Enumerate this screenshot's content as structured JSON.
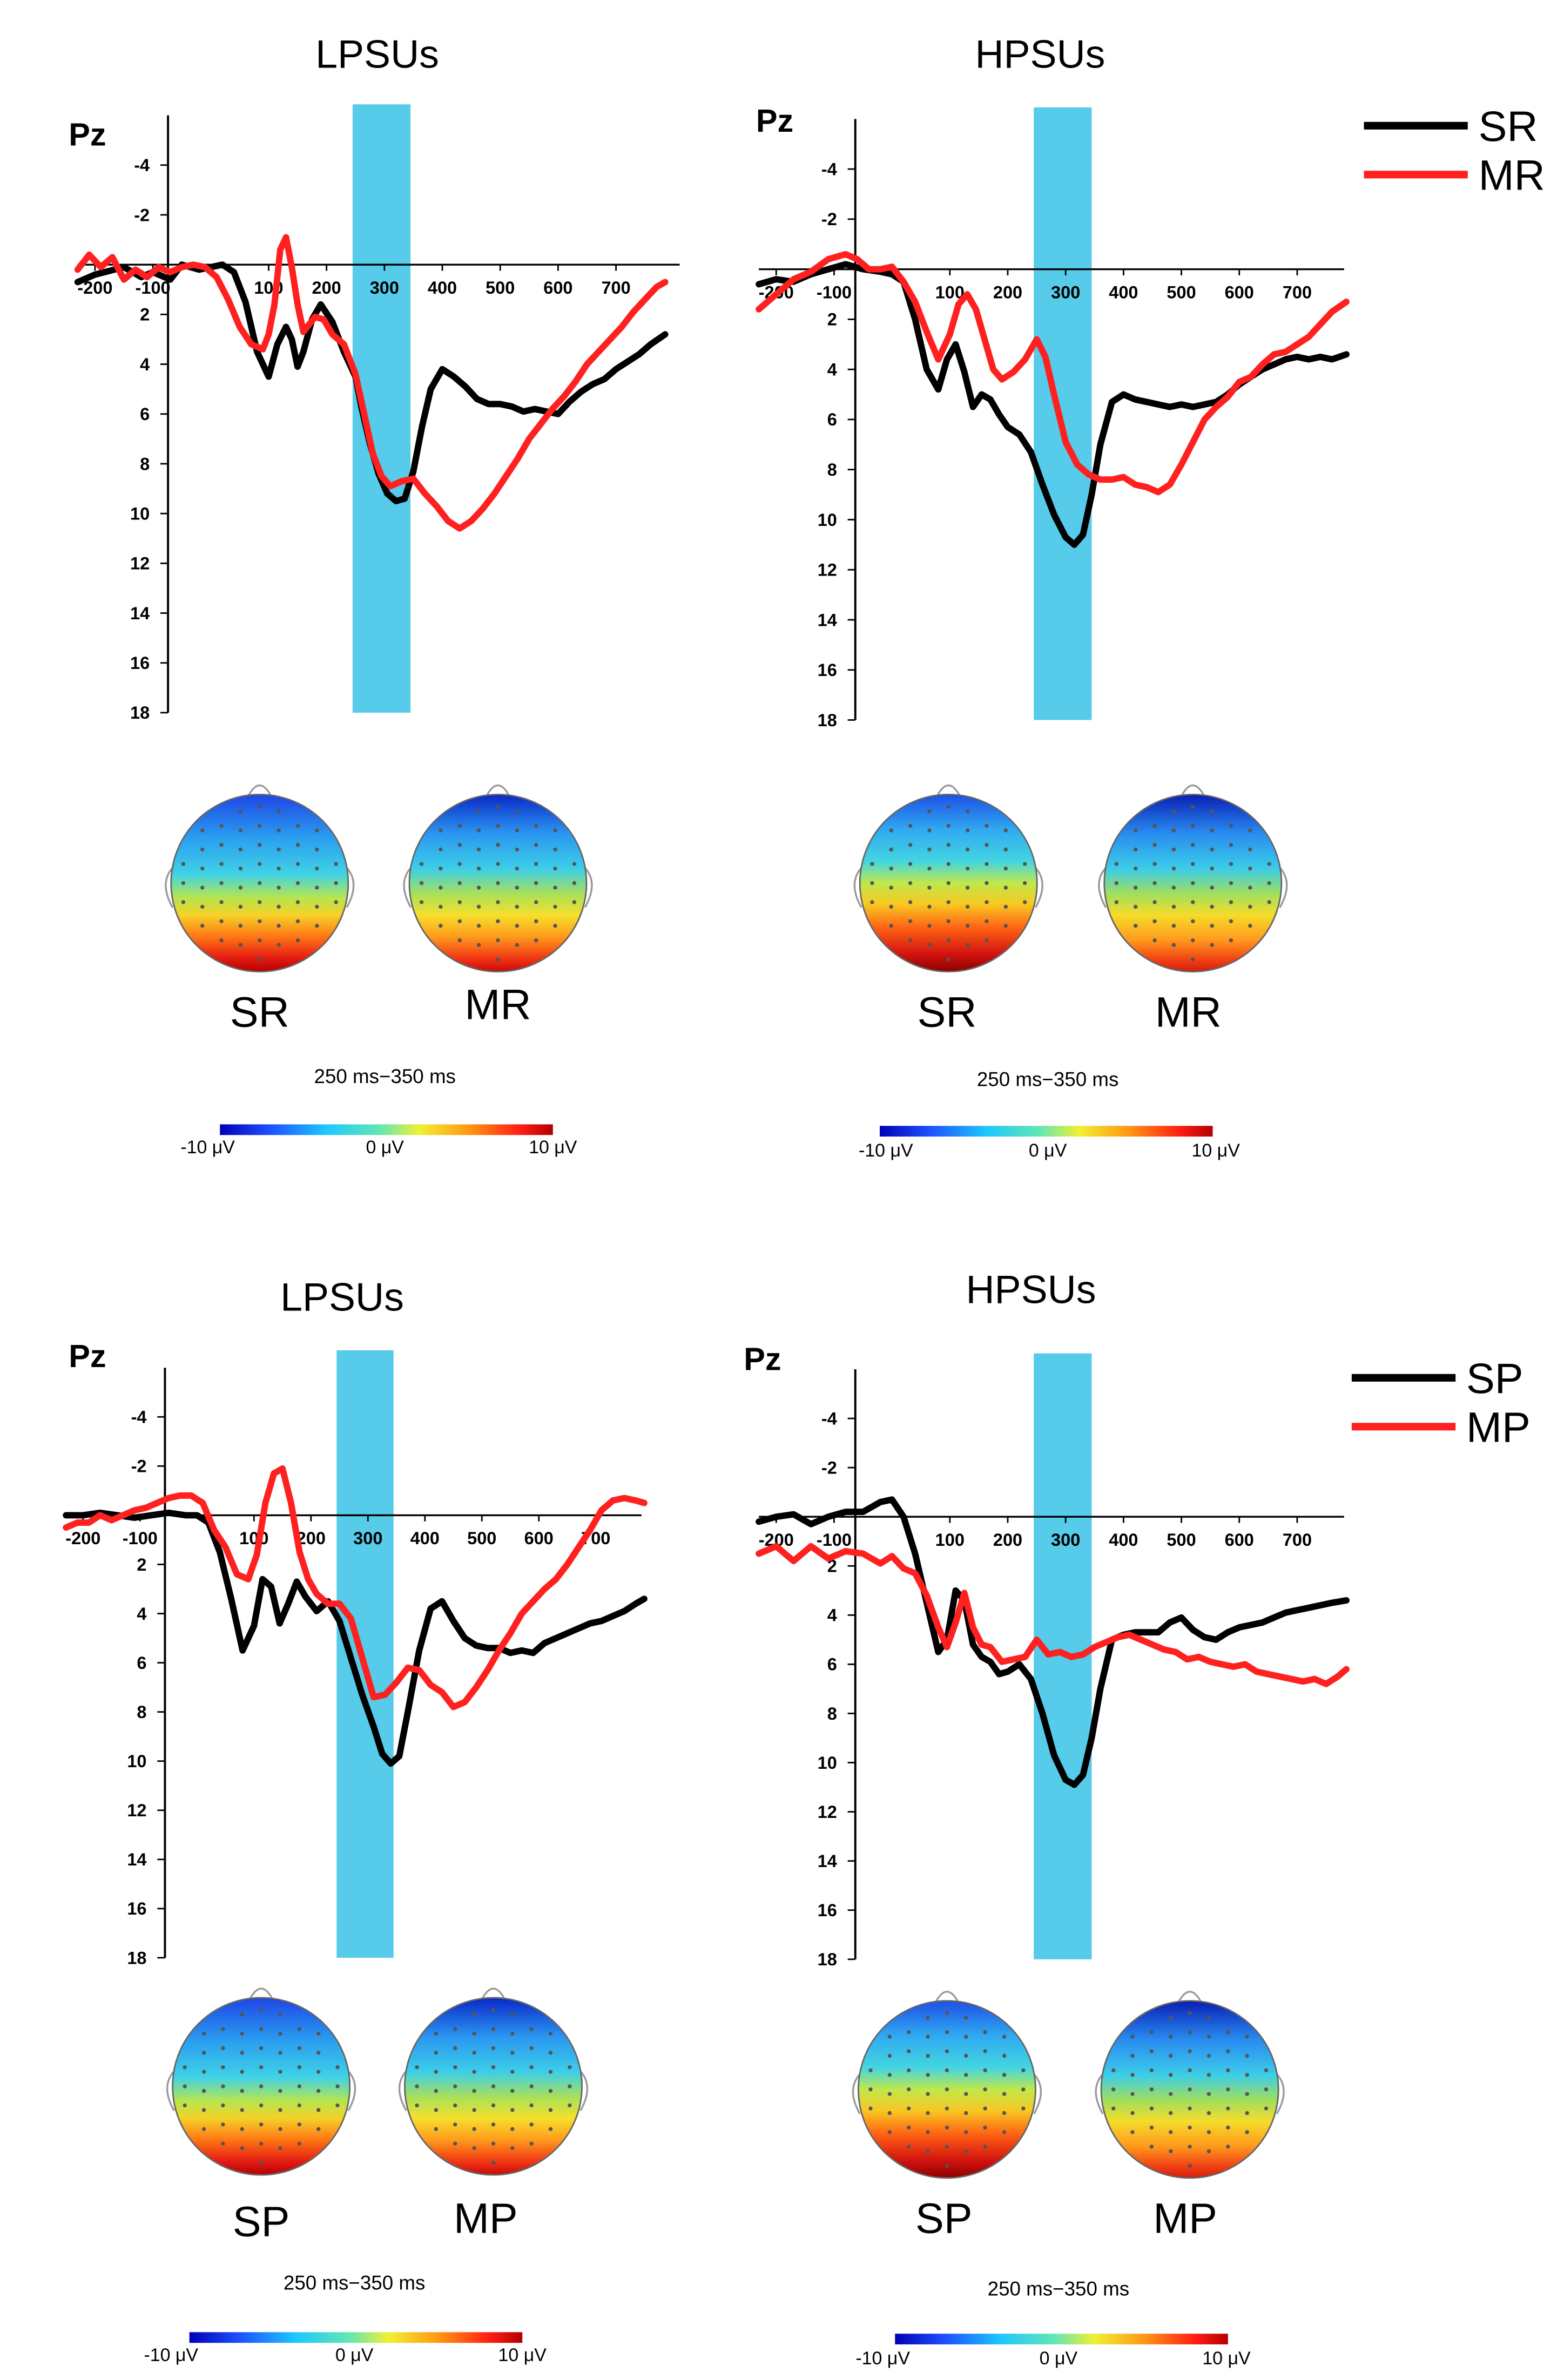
{
  "figure": {
    "topo_window": "250 ms−350 ms",
    "colorbar_labels": [
      "-10 μV",
      "0 μV",
      "10 μV"
    ],
    "colors": {
      "condition_a": "#000000",
      "condition_b": "#ff2020",
      "highlight": "#56cbea",
      "axis": "#000000"
    }
  },
  "legends": [
    {
      "items": [
        {
          "label": "SR",
          "color": "#000000"
        },
        {
          "label": "MR",
          "color": "#ff2020"
        }
      ]
    },
    {
      "items": [
        {
          "label": "SP",
          "color": "#000000"
        },
        {
          "label": "MP",
          "color": "#ff2020"
        }
      ]
    }
  ],
  "chart_data": [
    {
      "type": "line",
      "title": "LPSUs",
      "channel_label": "Pz",
      "xlabel": "",
      "ylabel": "",
      "x_ticks": [
        -200,
        -100,
        100,
        200,
        300,
        400,
        500,
        600,
        700
      ],
      "y_ticks": [
        -4,
        -2,
        2,
        4,
        6,
        8,
        10,
        12,
        14,
        16,
        18
      ],
      "xlim": [
        -230,
        790
      ],
      "ylim": [
        -6,
        18
      ],
      "y_inverted": true,
      "highlight_window": [
        245,
        345
      ],
      "series": [
        {
          "name": "SR",
          "color": "#000000",
          "x": [
            -230,
            -200,
            -150,
            -120,
            -100,
            -70,
            -50,
            -20,
            0,
            20,
            40,
            60,
            80,
            100,
            115,
            130,
            140,
            150,
            160,
            175,
            190,
            210,
            230,
            250,
            260,
            275,
            290,
            305,
            320,
            335,
            350,
            365,
            380,
            400,
            420,
            440,
            460,
            480,
            500,
            520,
            540,
            560,
            580,
            600,
            620,
            640,
            660,
            680,
            700,
            720,
            740,
            760,
            785
          ],
          "y": [
            0.7,
            0.4,
            0.1,
            0.5,
            0.3,
            0.6,
            0.0,
            0.2,
            0.1,
            0,
            0.3,
            1.5,
            3.5,
            4.5,
            3.2,
            2.5,
            3.0,
            4.1,
            3.5,
            2.2,
            1.6,
            2.3,
            3.5,
            4.5,
            5.7,
            7.2,
            8.4,
            9.2,
            9.5,
            9.4,
            8.3,
            6.5,
            5.0,
            4.2,
            4.5,
            4.9,
            5.4,
            5.6,
            5.6,
            5.7,
            5.9,
            5.8,
            5.9,
            6.0,
            5.5,
            5.1,
            4.8,
            4.6,
            4.2,
            3.9,
            3.6,
            3.2,
            2.8
          ]
        },
        {
          "name": "MR",
          "color": "#ff2020",
          "x": [
            -230,
            -210,
            -190,
            -170,
            -150,
            -130,
            -110,
            -90,
            -70,
            -50,
            -30,
            -10,
            10,
            30,
            50,
            70,
            90,
            100,
            110,
            120,
            130,
            140,
            150,
            160,
            170,
            180,
            195,
            210,
            230,
            250,
            265,
            280,
            295,
            310,
            330,
            350,
            370,
            390,
            410,
            430,
            450,
            470,
            490,
            510,
            530,
            550,
            570,
            590,
            610,
            630,
            650,
            670,
            690,
            710,
            730,
            750,
            770,
            785
          ],
          "y": [
            0.2,
            -0.4,
            0.1,
            -0.3,
            0.6,
            0.2,
            0.5,
            0.1,
            0.3,
            0.1,
            0.0,
            0.1,
            0.5,
            1.4,
            2.5,
            3.2,
            3.4,
            2.8,
            1.6,
            -0.6,
            -1.1,
            0.1,
            1.6,
            2.7,
            2.4,
            2.1,
            2.2,
            2.8,
            3.2,
            4.4,
            6.0,
            7.6,
            8.5,
            8.9,
            8.7,
            8.6,
            9.2,
            9.7,
            10.3,
            10.6,
            10.3,
            9.8,
            9.2,
            8.5,
            7.8,
            7.0,
            6.4,
            5.8,
            5.3,
            4.7,
            4.0,
            3.5,
            3.0,
            2.5,
            1.9,
            1.4,
            0.9,
            0.7
          ]
        }
      ]
    },
    {
      "type": "line",
      "title": "HPSUs",
      "channel_label": "Pz",
      "xlabel": "",
      "ylabel": "",
      "x_ticks": [
        -200,
        -100,
        100,
        200,
        300,
        400,
        500,
        600,
        700
      ],
      "y_ticks": [
        -4,
        -2,
        2,
        4,
        6,
        8,
        10,
        12,
        14,
        16,
        18
      ],
      "xlim": [
        -230,
        790
      ],
      "ylim": [
        -6,
        18
      ],
      "y_inverted": true,
      "highlight_window": [
        245,
        345
      ],
      "series": [
        {
          "name": "SR",
          "color": "#000000",
          "x": [
            -230,
            -200,
            -170,
            -140,
            -110,
            -80,
            -50,
            -20,
            0,
            20,
            40,
            60,
            80,
            95,
            110,
            125,
            140,
            155,
            170,
            185,
            200,
            220,
            240,
            260,
            280,
            300,
            315,
            330,
            345,
            360,
            380,
            400,
            420,
            440,
            460,
            480,
            500,
            520,
            540,
            560,
            580,
            600,
            620,
            640,
            660,
            680,
            700,
            720,
            740,
            760,
            785
          ],
          "y": [
            0.6,
            0.4,
            0.5,
            0.2,
            0.0,
            -0.2,
            0.0,
            0.1,
            0.2,
            0.5,
            2.0,
            4.0,
            4.8,
            3.6,
            3.0,
            4.1,
            5.5,
            5.0,
            5.2,
            5.8,
            6.3,
            6.6,
            7.3,
            8.6,
            9.8,
            10.7,
            11.0,
            10.6,
            9.0,
            7.0,
            5.3,
            5.0,
            5.2,
            5.3,
            5.4,
            5.5,
            5.4,
            5.5,
            5.4,
            5.3,
            5.0,
            4.6,
            4.3,
            4.0,
            3.8,
            3.6,
            3.5,
            3.6,
            3.5,
            3.6,
            3.4
          ]
        },
        {
          "name": "MR",
          "color": "#ff2020",
          "x": [
            -230,
            -200,
            -170,
            -140,
            -110,
            -80,
            -60,
            -40,
            -20,
            0,
            20,
            40,
            60,
            80,
            100,
            115,
            130,
            145,
            160,
            175,
            190,
            210,
            230,
            250,
            265,
            280,
            300,
            320,
            340,
            360,
            380,
            400,
            420,
            440,
            460,
            480,
            500,
            520,
            540,
            560,
            580,
            600,
            620,
            640,
            660,
            680,
            700,
            720,
            740,
            760,
            785
          ],
          "y": [
            1.6,
            1.0,
            0.4,
            0.1,
            -0.4,
            -0.6,
            -0.4,
            0.0,
            0.0,
            -0.1,
            0.5,
            1.3,
            2.5,
            3.6,
            2.6,
            1.4,
            1.0,
            1.6,
            2.8,
            4.0,
            4.4,
            4.1,
            3.6,
            2.8,
            3.5,
            5.0,
            6.9,
            7.8,
            8.2,
            8.4,
            8.4,
            8.3,
            8.6,
            8.7,
            8.9,
            8.6,
            7.8,
            6.9,
            6.0,
            5.5,
            5.1,
            4.5,
            4.3,
            3.8,
            3.4,
            3.3,
            3.0,
            2.7,
            2.2,
            1.7,
            1.3
          ]
        }
      ]
    },
    {
      "type": "line",
      "title": "LPSUs",
      "channel_label": "Pz",
      "xlabel": "",
      "ylabel": "",
      "x_ticks": [
        -200,
        -100,
        100,
        200,
        300,
        400,
        500,
        600,
        700
      ],
      "y_ticks": [
        -4,
        -2,
        2,
        4,
        6,
        8,
        10,
        12,
        14,
        16,
        18
      ],
      "xlim": [
        -230,
        790
      ],
      "ylim": [
        -6,
        18
      ],
      "y_inverted": true,
      "highlight_window": [
        245,
        345
      ],
      "series": [
        {
          "name": "SP",
          "color": "#000000",
          "x": [
            -230,
            -200,
            -170,
            -140,
            -110,
            -80,
            -50,
            -20,
            0,
            20,
            40,
            60,
            80,
            100,
            115,
            130,
            145,
            160,
            175,
            190,
            210,
            230,
            250,
            270,
            290,
            310,
            325,
            340,
            355,
            370,
            390,
            410,
            430,
            450,
            470,
            490,
            510,
            530,
            550,
            570,
            590,
            610,
            630,
            650,
            670,
            690,
            710,
            730,
            750,
            770,
            785
          ],
          "y": [
            0.0,
            0.0,
            -0.1,
            0.0,
            0.1,
            0.0,
            -0.1,
            0.0,
            0.0,
            0.3,
            1.5,
            3.4,
            5.5,
            4.5,
            2.6,
            2.9,
            4.4,
            3.6,
            2.7,
            3.3,
            3.9,
            3.5,
            4.3,
            5.8,
            7.3,
            8.6,
            9.7,
            10.1,
            9.8,
            8.0,
            5.5,
            3.8,
            3.5,
            4.3,
            5.0,
            5.3,
            5.4,
            5.4,
            5.6,
            5.5,
            5.6,
            5.2,
            5.0,
            4.8,
            4.6,
            4.4,
            4.3,
            4.1,
            3.9,
            3.6,
            3.4
          ]
        },
        {
          "name": "MP",
          "color": "#ff2020",
          "x": [
            -230,
            -210,
            -190,
            -170,
            -150,
            -130,
            -110,
            -90,
            -70,
            -50,
            -30,
            -10,
            10,
            30,
            50,
            70,
            90,
            105,
            120,
            135,
            150,
            165,
            180,
            195,
            210,
            230,
            250,
            270,
            290,
            310,
            330,
            350,
            370,
            390,
            410,
            430,
            450,
            470,
            490,
            510,
            530,
            550,
            570,
            590,
            610,
            630,
            650,
            670,
            690,
            710,
            730,
            750,
            770,
            785
          ],
          "y": [
            0.5,
            0.3,
            0.3,
            0.0,
            0.2,
            0.0,
            -0.2,
            -0.3,
            -0.5,
            -0.7,
            -0.8,
            -0.8,
            -0.5,
            0.6,
            1.3,
            2.4,
            2.6,
            1.6,
            -0.5,
            -1.7,
            -1.9,
            -0.5,
            1.5,
            2.6,
            3.2,
            3.6,
            3.6,
            4.2,
            5.8,
            7.4,
            7.3,
            6.8,
            6.2,
            6.3,
            6.9,
            7.2,
            7.8,
            7.6,
            7.0,
            6.3,
            5.5,
            4.8,
            4.0,
            3.5,
            3.0,
            2.6,
            2.0,
            1.3,
            0.6,
            -0.2,
            -0.6,
            -0.7,
            -0.6,
            -0.5
          ]
        }
      ]
    },
    {
      "type": "line",
      "title": "HPSUs",
      "channel_label": "Pz",
      "xlabel": "",
      "ylabel": "",
      "x_ticks": [
        -200,
        -100,
        100,
        200,
        300,
        400,
        500,
        600,
        700
      ],
      "y_ticks": [
        -4,
        -2,
        2,
        4,
        6,
        8,
        10,
        12,
        14,
        16,
        18
      ],
      "xlim": [
        -230,
        790
      ],
      "ylim": [
        -6,
        18
      ],
      "y_inverted": true,
      "highlight_window": [
        245,
        345
      ],
      "series": [
        {
          "name": "SP",
          "color": "#000000",
          "x": [
            -230,
            -200,
            -170,
            -140,
            -110,
            -80,
            -50,
            -20,
            0,
            20,
            40,
            60,
            80,
            95,
            110,
            125,
            140,
            155,
            170,
            185,
            200,
            220,
            240,
            260,
            280,
            300,
            315,
            330,
            345,
            360,
            380,
            400,
            420,
            440,
            460,
            480,
            500,
            520,
            540,
            560,
            580,
            600,
            620,
            640,
            660,
            680,
            700,
            720,
            740,
            760,
            785
          ],
          "y": [
            0.2,
            0.0,
            -0.1,
            0.3,
            0.0,
            -0.2,
            -0.2,
            -0.6,
            -0.7,
            0.0,
            1.5,
            3.5,
            5.5,
            5.0,
            3.0,
            3.4,
            5.2,
            5.7,
            5.9,
            6.4,
            6.3,
            6.0,
            6.6,
            8.0,
            9.7,
            10.7,
            10.9,
            10.5,
            9.0,
            7.0,
            5.0,
            4.8,
            4.7,
            4.7,
            4.7,
            4.3,
            4.1,
            4.6,
            4.9,
            5.0,
            4.7,
            4.5,
            4.4,
            4.3,
            4.1,
            3.9,
            3.8,
            3.7,
            3.6,
            3.5,
            3.4
          ]
        },
        {
          "name": "MP",
          "color": "#ff2020",
          "x": [
            -230,
            -200,
            -170,
            -140,
            -110,
            -80,
            -50,
            -20,
            0,
            20,
            40,
            60,
            80,
            95,
            110,
            125,
            140,
            155,
            170,
            190,
            210,
            230,
            250,
            270,
            290,
            310,
            330,
            350,
            370,
            390,
            410,
            430,
            450,
            470,
            490,
            510,
            530,
            550,
            570,
            590,
            610,
            630,
            650,
            670,
            690,
            710,
            730,
            750,
            770,
            785
          ],
          "y": [
            1.5,
            1.2,
            1.8,
            1.2,
            1.7,
            1.4,
            1.5,
            1.9,
            1.6,
            2.1,
            2.3,
            3.2,
            4.5,
            5.3,
            4.3,
            3.1,
            4.5,
            5.2,
            5.3,
            5.9,
            5.8,
            5.7,
            5.0,
            5.6,
            5.5,
            5.7,
            5.6,
            5.3,
            5.1,
            4.9,
            4.8,
            5.0,
            5.2,
            5.4,
            5.5,
            5.8,
            5.7,
            5.9,
            6.0,
            6.1,
            6.0,
            6.3,
            6.4,
            6.5,
            6.6,
            6.7,
            6.6,
            6.8,
            6.5,
            6.2
          ]
        }
      ]
    }
  ],
  "topographies": [
    {
      "label": "SR",
      "pattern": 0
    },
    {
      "label": "MR",
      "pattern": 1
    },
    {
      "label": "SR",
      "pattern": 2
    },
    {
      "label": "MR",
      "pattern": 3
    },
    {
      "label": "SP",
      "pattern": 0
    },
    {
      "label": "MP",
      "pattern": 1
    },
    {
      "label": "SP",
      "pattern": 2
    },
    {
      "label": "MP",
      "pattern": 3
    }
  ]
}
